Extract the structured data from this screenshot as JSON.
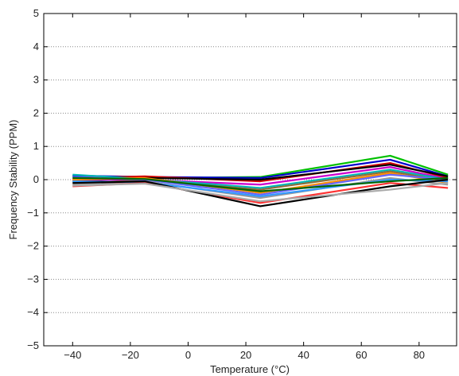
{
  "chart_data": {
    "type": "line",
    "title": "",
    "xlabel": "Temperature (°C)",
    "ylabel": "Frequency Stability (PPM)",
    "xlim": [
      -50,
      93
    ],
    "ylim": [
      -5,
      5
    ],
    "xticks": [
      -40,
      -20,
      0,
      20,
      40,
      60,
      80
    ],
    "yticks": [
      -5,
      -4,
      -3,
      -2,
      -1,
      0,
      1,
      2,
      3,
      4,
      5
    ],
    "xtick_labels": [
      "−40",
      "−20",
      "0",
      "20",
      "40",
      "60",
      "80"
    ],
    "ytick_labels": [
      "−5",
      "−4",
      "−3",
      "−2",
      "−1",
      "0",
      "1",
      "2",
      "3",
      "4",
      "5"
    ],
    "grid": "horizontal-dotted",
    "legend": "none",
    "x": [
      -40,
      -15,
      25,
      70,
      90
    ],
    "series": [
      {
        "color": "#00c000",
        "values": [
          0.1,
          0.05,
          0.08,
          0.72,
          0.15
        ]
      },
      {
        "color": "#0000cc",
        "values": [
          0.12,
          0.08,
          0.05,
          0.6,
          0.1
        ]
      },
      {
        "color": "#d40000",
        "values": [
          0.05,
          0.1,
          -0.05,
          0.5,
          0.05
        ]
      },
      {
        "color": "#000000",
        "values": [
          -0.05,
          0.05,
          0.0,
          0.45,
          0.1
        ]
      },
      {
        "color": "#cc00cc",
        "values": [
          0.0,
          0.0,
          -0.15,
          0.38,
          0.02
        ]
      },
      {
        "color": "#00b5b5",
        "values": [
          0.15,
          0.02,
          -0.25,
          0.3,
          0.0
        ]
      },
      {
        "color": "#8a6d3b",
        "values": [
          -0.1,
          -0.02,
          -0.3,
          0.25,
          -0.05
        ]
      },
      {
        "color": "#ff8c00",
        "values": [
          0.0,
          0.05,
          -0.4,
          0.2,
          -0.1
        ]
      },
      {
        "color": "#6666ff",
        "values": [
          0.08,
          0.0,
          -0.45,
          0.15,
          0.0
        ]
      },
      {
        "color": "#999999",
        "values": [
          -0.15,
          -0.05,
          -0.55,
          0.05,
          -0.15
        ]
      },
      {
        "color": "#3399ff",
        "values": [
          -0.05,
          -0.08,
          -0.5,
          0.0,
          -0.05
        ]
      },
      {
        "color": "#006600",
        "values": [
          0.05,
          0.02,
          -0.35,
          -0.05,
          0.05
        ]
      },
      {
        "color": "#ff3333",
        "values": [
          -0.2,
          -0.1,
          -0.7,
          -0.1,
          -0.25
        ]
      },
      {
        "color": "#000000",
        "values": [
          -0.1,
          -0.05,
          -0.8,
          -0.2,
          0.0
        ]
      },
      {
        "color": "#aaaaaa",
        "values": [
          -0.18,
          -0.12,
          -0.65,
          -0.3,
          -0.1
        ]
      }
    ]
  }
}
